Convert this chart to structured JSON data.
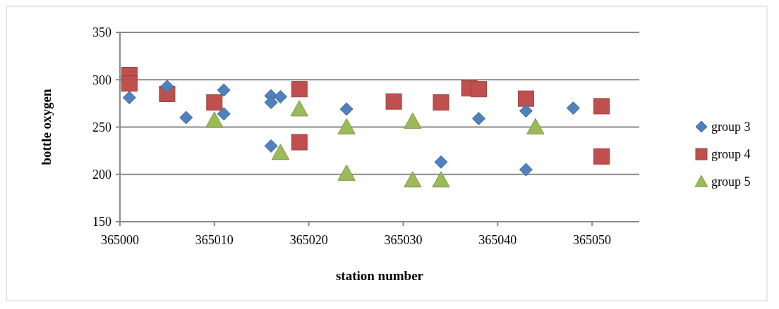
{
  "chart_data": {
    "type": "scatter",
    "xlabel": "station number",
    "ylabel": "bottle oxygen",
    "xlim": [
      365000,
      365055
    ],
    "xticks": [
      365000,
      365010,
      365020,
      365030,
      365040,
      365050
    ],
    "ylim": [
      150,
      350
    ],
    "yticks": [
      150,
      200,
      250,
      300,
      350
    ],
    "grid": "y",
    "legend": "right",
    "series": [
      {
        "name": "group 3",
        "color": "#4f81bd",
        "marker": "diamond",
        "x": [
          365001,
          365005,
          365007,
          365011,
          365011,
          365016,
          365016,
          365017,
          365016,
          365024,
          365038,
          365043,
          365048,
          365034,
          365043
        ],
        "values": [
          281,
          293,
          260,
          289,
          264,
          283,
          276,
          282,
          230,
          269,
          259,
          267,
          270,
          213,
          205
        ]
      },
      {
        "name": "group 4",
        "color": "#c0504d",
        "marker": "square",
        "x": [
          365001,
          365001,
          365005,
          365010,
          365019,
          365019,
          365029,
          365034,
          365037,
          365038,
          365043,
          365051,
          365051
        ],
        "values": [
          305,
          296,
          285,
          276,
          290,
          234,
          277,
          276,
          291,
          290,
          280,
          272,
          219
        ]
      },
      {
        "name": "group 5",
        "color": "#9bbb59",
        "marker": "triangle",
        "x": [
          365010,
          365019,
          365017,
          365024,
          365024,
          365031,
          365031,
          365034,
          365044
        ],
        "values": [
          257,
          269,
          223,
          250,
          201,
          256,
          194,
          194,
          250
        ]
      }
    ]
  }
}
